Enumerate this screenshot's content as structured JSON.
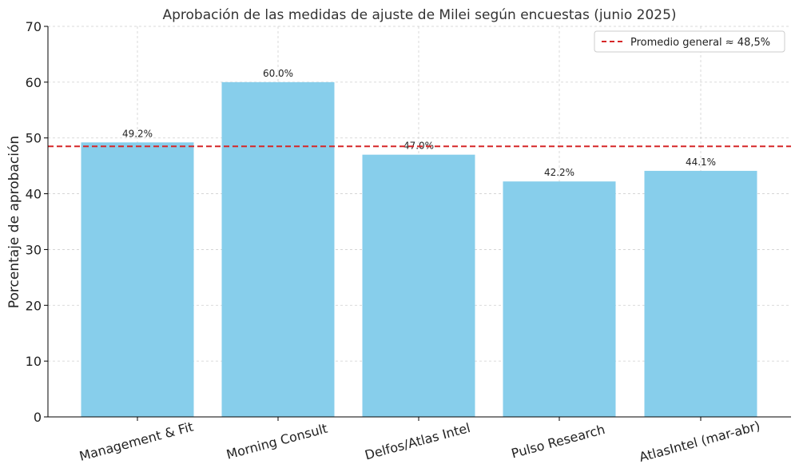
{
  "chart_data": {
    "type": "bar",
    "title": "Aprobación de las medidas de ajuste de Milei según encuestas (junio 2025)",
    "xlabel": "",
    "ylabel": "Porcentaje de aprobación",
    "categories": [
      "Management & Fit",
      "Morning Consult",
      "Delfos/Atlas Intel",
      "Pulso Research",
      "AtlasIntel (mar-abr)"
    ],
    "values": [
      49.2,
      60.0,
      47.0,
      42.2,
      44.1
    ],
    "data_labels": [
      "49.2%",
      "60.0%",
      "47.0%",
      "42.2%",
      "44.1%"
    ],
    "ylim": [
      0,
      70
    ],
    "yticks": [
      0,
      10,
      20,
      30,
      40,
      50,
      60,
      70
    ],
    "grid": true,
    "bar_color": "#87CEEB",
    "reference_line": {
      "value": 48.5,
      "label": "Promedio general ≈ 48,5%",
      "color": "#d62728",
      "style": "dashed"
    },
    "legend": {
      "position": "top-right",
      "entries": [
        "Promedio general ≈ 48,5%"
      ]
    }
  }
}
